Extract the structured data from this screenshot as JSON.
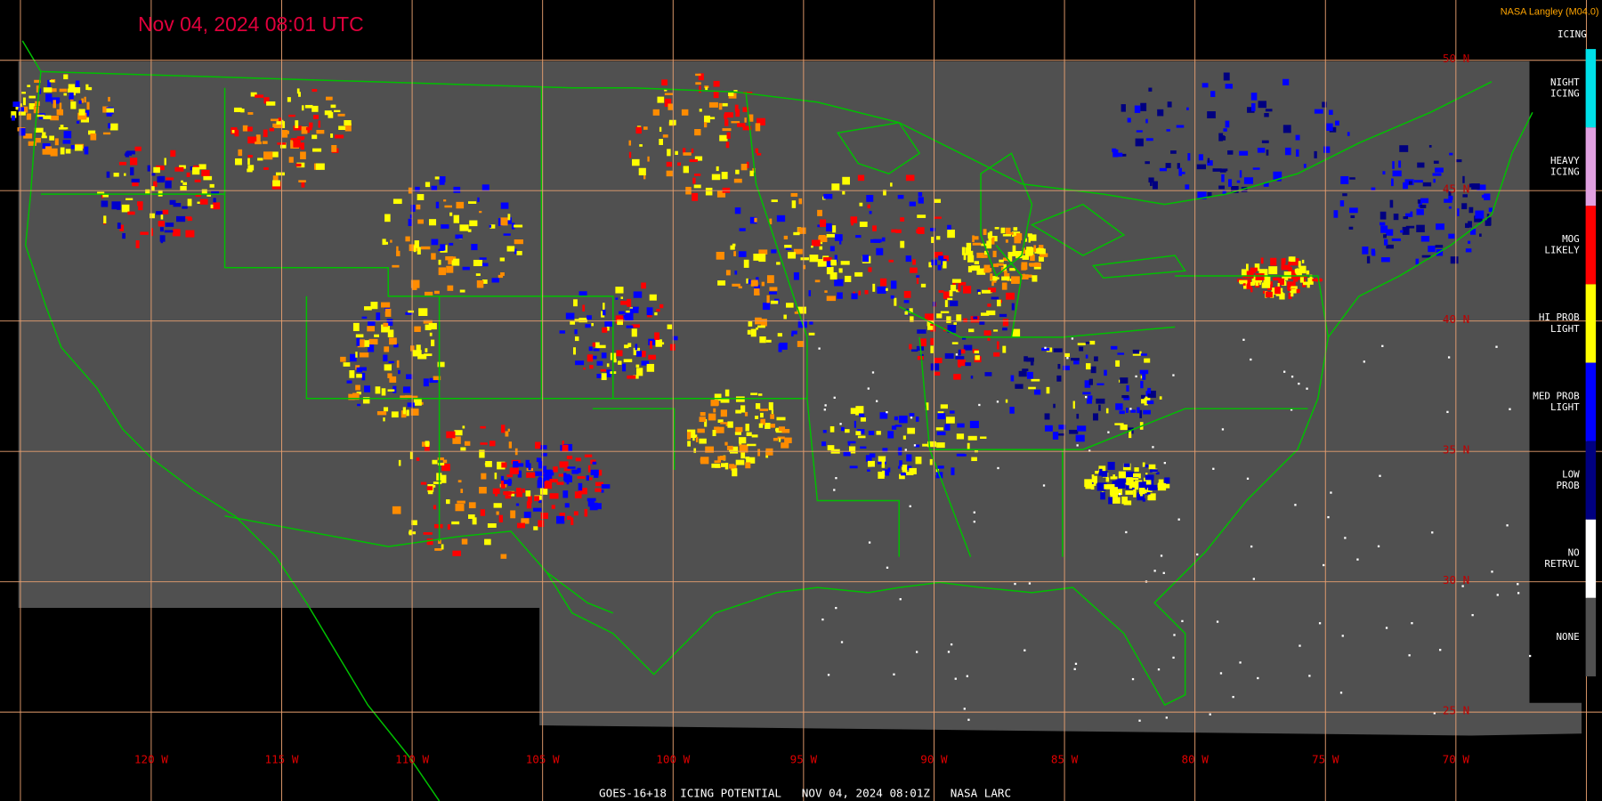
{
  "header": {
    "title": "Nov 04, 2024 08:01 UTC",
    "credit": "NASA Langley (M04.0)"
  },
  "legend": {
    "title": "ICING",
    "items": [
      {
        "lines": [
          "NIGHT",
          "ICING"
        ],
        "color": "#00e0e8"
      },
      {
        "lines": [
          "HEAVY",
          "ICING"
        ],
        "color": "#e0a0e0"
      },
      {
        "lines": [
          "MOG",
          "LIKELY"
        ],
        "color": "#ff0000"
      },
      {
        "lines": [
          "HI PROB",
          "LIGHT"
        ],
        "color": "#ffff00"
      },
      {
        "lines": [
          "MED PROB",
          "LIGHT"
        ],
        "color": "#0000ff"
      },
      {
        "lines": [
          "LOW",
          "PROB"
        ],
        "color": "#000080"
      },
      {
        "lines": [
          "NO",
          "RETRVL"
        ],
        "color": "#ffffff"
      },
      {
        "lines": [
          "NONE"
        ],
        "color": "#505050"
      }
    ]
  },
  "lon_labels": [
    "120 W",
    "115 W",
    "110 W",
    "105 W",
    "100 W",
    "95 W",
    "90 W",
    "85 W",
    "80 W",
    "75 W",
    "70 W"
  ],
  "lat_labels": [
    "50 N",
    "45 N",
    "40 N",
    "35 N",
    "30 N",
    "25 N"
  ],
  "footer": "GOES-16+18  ICING POTENTIAL   NOV 04, 2024 08:01Z   NASA LARC"
}
